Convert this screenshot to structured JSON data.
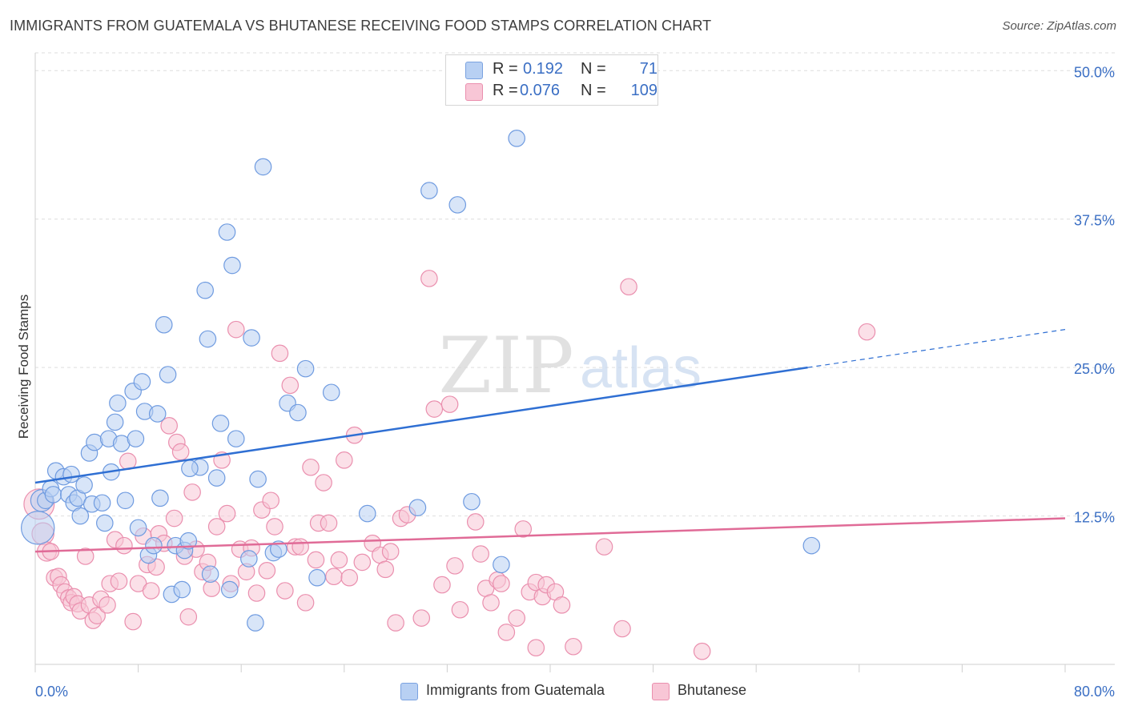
{
  "title": "IMMIGRANTS FROM GUATEMALA VS BHUTANESE RECEIVING FOOD STAMPS CORRELATION CHART",
  "source": "Source: ZipAtlas.com",
  "watermark": {
    "zip": "ZIP",
    "atlas": "atlas"
  },
  "legend": {
    "rows": [
      {
        "r_label": "R =",
        "r_value": "0.192",
        "n_label": "N =",
        "n_value": "71",
        "color": "#b8d0f3",
        "border": "#7aa2e0"
      },
      {
        "r_label": "R =",
        "r_value": "0.076",
        "n_label": "N =",
        "n_value": "109",
        "color": "#f8c6d6",
        "border": "#ea8fae"
      }
    ]
  },
  "bottom_legend": [
    {
      "label": "Immigrants from Guatemala",
      "color": "#b8d0f3",
      "border": "#7aa2e0"
    },
    {
      "label": "Bhutanese",
      "color": "#f8c6d6",
      "border": "#ea8fae"
    }
  ],
  "chart_data": {
    "type": "scatter",
    "title": "IMMIGRANTS FROM GUATEMALA VS BHUTANESE RECEIVING FOOD STAMPS CORRELATION CHART",
    "xlabel": "",
    "ylabel": "Receiving Food Stamps",
    "xlim": [
      0,
      80
    ],
    "ylim": [
      0,
      51.5
    ],
    "x_tick_labels": [
      "0.0%",
      "80.0%"
    ],
    "y_ticks": [
      12.5,
      25.0,
      37.5,
      50.0
    ],
    "y_tick_labels": [
      "12.5%",
      "25.0%",
      "37.5%",
      "50.0%"
    ],
    "grid": true,
    "colors": {
      "guatemala": "#4a7fd1",
      "bhutanese": "#e27aa0",
      "y_tick_text": "#3b6fc4"
    },
    "series": [
      {
        "name": "Immigrants from Guatemala",
        "color": "#b8d0f3",
        "stroke": "#6f9be0",
        "trend": {
          "x0": 0,
          "y0": 15.3,
          "x1": 60,
          "y1": 25.0,
          "dash_to_x": 80,
          "dash_to_y": 28.2,
          "color": "#2f6fd3"
        },
        "points": [
          [
            0.2,
            11.5,
            22
          ],
          [
            0.5,
            13.8,
            14
          ],
          [
            0.8,
            13.8,
            10
          ],
          [
            1.2,
            14.8,
            10
          ],
          [
            1.4,
            14.3,
            10
          ],
          [
            1.6,
            16.3,
            10
          ],
          [
            2.2,
            15.8,
            10
          ],
          [
            2.6,
            14.3,
            10
          ],
          [
            2.8,
            16.0,
            10
          ],
          [
            3.0,
            13.6,
            10
          ],
          [
            3.3,
            14.0,
            10
          ],
          [
            3.5,
            12.5,
            10
          ],
          [
            3.8,
            15.1,
            10
          ],
          [
            4.2,
            17.8,
            10
          ],
          [
            4.4,
            13.5,
            10
          ],
          [
            4.6,
            18.7,
            10
          ],
          [
            5.2,
            13.6,
            10
          ],
          [
            5.4,
            11.9,
            10
          ],
          [
            5.7,
            19.0,
            10
          ],
          [
            5.9,
            16.2,
            10
          ],
          [
            6.2,
            20.4,
            10
          ],
          [
            6.4,
            22.0,
            10
          ],
          [
            6.7,
            18.6,
            10
          ],
          [
            7.0,
            13.8,
            10
          ],
          [
            7.6,
            23.0,
            10
          ],
          [
            7.8,
            19.0,
            10
          ],
          [
            8.0,
            11.5,
            10
          ],
          [
            8.3,
            23.8,
            10
          ],
          [
            8.5,
            21.3,
            10
          ],
          [
            8.8,
            9.2,
            10
          ],
          [
            9.2,
            10.0,
            10
          ],
          [
            9.5,
            21.1,
            10
          ],
          [
            9.7,
            14.0,
            10
          ],
          [
            10.0,
            28.6,
            10
          ],
          [
            10.3,
            24.4,
            10
          ],
          [
            10.6,
            5.9,
            10
          ],
          [
            10.9,
            10.0,
            10
          ],
          [
            11.4,
            6.3,
            10
          ],
          [
            11.6,
            9.6,
            10
          ],
          [
            11.9,
            10.4,
            10
          ],
          [
            12.8,
            16.6,
            10
          ],
          [
            13.2,
            31.5,
            10
          ],
          [
            13.4,
            27.4,
            10
          ],
          [
            13.6,
            7.6,
            10
          ],
          [
            14.1,
            15.7,
            10
          ],
          [
            14.4,
            20.3,
            10
          ],
          [
            14.9,
            36.4,
            10
          ],
          [
            15.1,
            6.3,
            10
          ],
          [
            15.3,
            33.6,
            10
          ],
          [
            15.6,
            19.0,
            10
          ],
          [
            16.6,
            8.9,
            10
          ],
          [
            16.8,
            27.5,
            10
          ],
          [
            17.1,
            3.5,
            10
          ],
          [
            17.3,
            15.6,
            10
          ],
          [
            17.7,
            41.9,
            10
          ],
          [
            18.5,
            9.4,
            10
          ],
          [
            18.9,
            9.7,
            10
          ],
          [
            19.6,
            22.0,
            10
          ],
          [
            20.4,
            21.2,
            10
          ],
          [
            21.0,
            24.9,
            10
          ],
          [
            21.9,
            7.3,
            10
          ],
          [
            23.0,
            22.9,
            10
          ],
          [
            25.8,
            12.7,
            10
          ],
          [
            29.7,
            13.2,
            10
          ],
          [
            30.6,
            39.9,
            10
          ],
          [
            32.8,
            38.7,
            10
          ],
          [
            33.9,
            13.7,
            10
          ],
          [
            36.2,
            8.4,
            10
          ],
          [
            37.4,
            44.3,
            10
          ],
          [
            60.3,
            10.0,
            10
          ],
          [
            12.0,
            16.5,
            10
          ]
        ]
      },
      {
        "name": "Bhutanese",
        "color": "#f8c6d6",
        "stroke": "#ea8fae",
        "trend": {
          "x0": 0,
          "y0": 9.5,
          "x1": 80,
          "y1": 12.3,
          "color": "#e06b97"
        },
        "points": [
          [
            0.3,
            13.5,
            20
          ],
          [
            0.6,
            11.0,
            14
          ],
          [
            0.9,
            9.5,
            12
          ],
          [
            1.2,
            9.5,
            10
          ],
          [
            1.5,
            7.3,
            10
          ],
          [
            1.8,
            7.4,
            10
          ],
          [
            2.0,
            6.7,
            10
          ],
          [
            2.3,
            6.1,
            10
          ],
          [
            2.6,
            5.6,
            10
          ],
          [
            2.8,
            5.2,
            10
          ],
          [
            3.0,
            5.7,
            10
          ],
          [
            3.3,
            5.1,
            10
          ],
          [
            3.5,
            4.5,
            10
          ],
          [
            3.9,
            9.1,
            10
          ],
          [
            4.2,
            5.0,
            10
          ],
          [
            4.5,
            3.7,
            10
          ],
          [
            4.8,
            4.1,
            10
          ],
          [
            5.1,
            5.5,
            10
          ],
          [
            5.6,
            5.0,
            10
          ],
          [
            5.8,
            6.8,
            10
          ],
          [
            6.2,
            10.5,
            10
          ],
          [
            6.5,
            7.0,
            10
          ],
          [
            6.9,
            10.0,
            10
          ],
          [
            7.2,
            17.1,
            10
          ],
          [
            7.6,
            3.6,
            10
          ],
          [
            8.0,
            6.8,
            10
          ],
          [
            8.4,
            10.8,
            10
          ],
          [
            8.7,
            8.4,
            10
          ],
          [
            9.0,
            6.2,
            10
          ],
          [
            9.4,
            8.2,
            10
          ],
          [
            9.6,
            11.0,
            10
          ],
          [
            10.0,
            10.2,
            10
          ],
          [
            10.4,
            20.1,
            10
          ],
          [
            10.8,
            12.3,
            10
          ],
          [
            11.0,
            18.7,
            10
          ],
          [
            11.3,
            17.9,
            10
          ],
          [
            11.6,
            9.1,
            10
          ],
          [
            11.9,
            4.0,
            10
          ],
          [
            12.2,
            14.5,
            10
          ],
          [
            12.5,
            9.7,
            10
          ],
          [
            13.0,
            7.8,
            10
          ],
          [
            13.4,
            8.6,
            10
          ],
          [
            13.7,
            6.4,
            10
          ],
          [
            14.1,
            11.6,
            10
          ],
          [
            14.5,
            17.2,
            10
          ],
          [
            14.9,
            12.7,
            10
          ],
          [
            15.2,
            6.8,
            10
          ],
          [
            15.6,
            28.2,
            10
          ],
          [
            15.9,
            9.7,
            10
          ],
          [
            16.4,
            7.8,
            10
          ],
          [
            16.8,
            9.8,
            10
          ],
          [
            17.2,
            6.0,
            10
          ],
          [
            17.6,
            13.0,
            10
          ],
          [
            18.0,
            7.9,
            10
          ],
          [
            18.3,
            13.8,
            10
          ],
          [
            18.6,
            11.6,
            10
          ],
          [
            19.0,
            26.2,
            10
          ],
          [
            19.4,
            6.2,
            10
          ],
          [
            19.8,
            23.5,
            10
          ],
          [
            20.2,
            9.9,
            10
          ],
          [
            20.6,
            9.9,
            10
          ],
          [
            21.0,
            5.2,
            10
          ],
          [
            21.4,
            16.6,
            10
          ],
          [
            21.8,
            8.8,
            10
          ],
          [
            22.0,
            11.9,
            10
          ],
          [
            22.4,
            15.3,
            10
          ],
          [
            22.8,
            11.9,
            10
          ],
          [
            23.2,
            7.4,
            10
          ],
          [
            23.6,
            8.8,
            10
          ],
          [
            24.0,
            17.2,
            10
          ],
          [
            24.4,
            7.3,
            10
          ],
          [
            24.8,
            19.3,
            10
          ],
          [
            25.4,
            8.6,
            10
          ],
          [
            26.2,
            10.2,
            10
          ],
          [
            26.8,
            9.2,
            10
          ],
          [
            27.2,
            8.0,
            10
          ],
          [
            27.6,
            9.5,
            10
          ],
          [
            28.0,
            3.5,
            10
          ],
          [
            28.4,
            12.3,
            10
          ],
          [
            28.9,
            12.6,
            10
          ],
          [
            30.0,
            3.9,
            10
          ],
          [
            30.6,
            32.5,
            10
          ],
          [
            31.0,
            21.5,
            10
          ],
          [
            31.6,
            6.7,
            10
          ],
          [
            32.2,
            21.9,
            10
          ],
          [
            32.6,
            8.3,
            10
          ],
          [
            33.0,
            4.6,
            10
          ],
          [
            34.2,
            12.0,
            10
          ],
          [
            34.6,
            9.3,
            10
          ],
          [
            35.0,
            6.4,
            10
          ],
          [
            35.4,
            5.2,
            10
          ],
          [
            35.9,
            7.1,
            10
          ],
          [
            36.2,
            6.8,
            10
          ],
          [
            36.6,
            2.7,
            10
          ],
          [
            37.4,
            3.9,
            10
          ],
          [
            37.9,
            11.4,
            10
          ],
          [
            38.4,
            6.1,
            10
          ],
          [
            38.9,
            6.9,
            10
          ],
          [
            39.4,
            5.7,
            10
          ],
          [
            39.7,
            6.7,
            10
          ],
          [
            40.4,
            6.1,
            10
          ],
          [
            40.9,
            5.0,
            10
          ],
          [
            41.8,
            1.5,
            10
          ],
          [
            44.2,
            9.9,
            10
          ],
          [
            45.6,
            3.0,
            10
          ],
          [
            46.1,
            31.8,
            10
          ],
          [
            51.8,
            1.1,
            10
          ],
          [
            64.6,
            28.0,
            10
          ],
          [
            38.9,
            1.4,
            10
          ]
        ]
      }
    ]
  }
}
